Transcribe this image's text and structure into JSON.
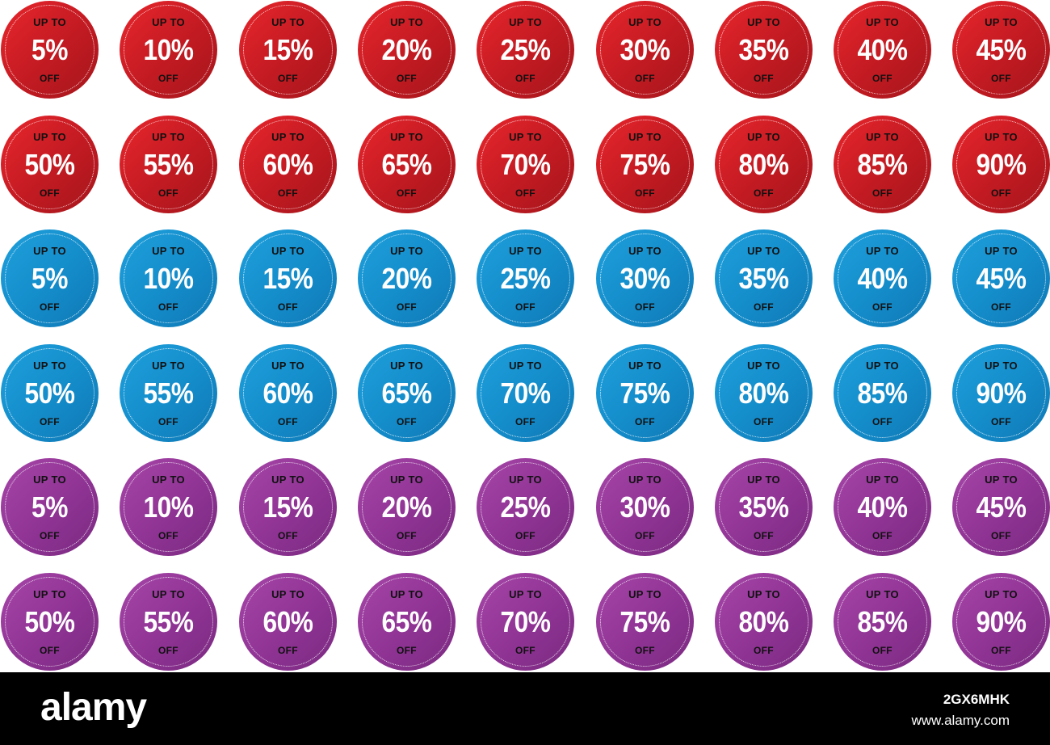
{
  "badge_text": {
    "top": "UP TO",
    "bottom": "OFF"
  },
  "rows": [
    {
      "color": "red",
      "values": [
        "5%",
        "10%",
        "15%",
        "20%",
        "25%",
        "30%",
        "35%",
        "40%",
        "45%"
      ]
    },
    {
      "color": "red",
      "values": [
        "50%",
        "55%",
        "60%",
        "65%",
        "70%",
        "75%",
        "80%",
        "85%",
        "90%"
      ]
    },
    {
      "color": "blue",
      "values": [
        "5%",
        "10%",
        "15%",
        "20%",
        "25%",
        "30%",
        "35%",
        "40%",
        "45%"
      ]
    },
    {
      "color": "blue",
      "values": [
        "50%",
        "55%",
        "60%",
        "65%",
        "70%",
        "75%",
        "80%",
        "85%",
        "90%"
      ]
    },
    {
      "color": "purple",
      "values": [
        "5%",
        "10%",
        "15%",
        "20%",
        "25%",
        "30%",
        "35%",
        "40%",
        "45%"
      ]
    },
    {
      "color": "purple",
      "values": [
        "50%",
        "55%",
        "60%",
        "65%",
        "70%",
        "75%",
        "80%",
        "85%",
        "90%"
      ]
    }
  ],
  "colors": {
    "red": "#d01f26",
    "blue": "#1690d0",
    "purple": "#943a98"
  },
  "footer": {
    "logo": "alamy",
    "image_id": "2GX6MHK",
    "url": "www.alamy.com"
  }
}
